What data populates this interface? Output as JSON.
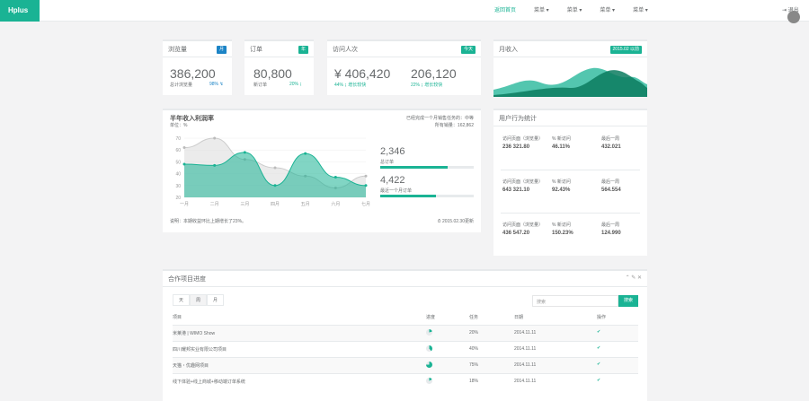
{
  "brand": "Hplus",
  "nav": {
    "home": "返回首页",
    "menus": [
      "菜单 ▾",
      "菜单 ▾",
      "菜单 ▾",
      "菜单 ▾"
    ],
    "logout": "⇥ 退出"
  },
  "stats": [
    {
      "title": "浏览量",
      "badge": "月",
      "badge_color": "#1c84c6",
      "value": "386,200",
      "sub": "总计浏览量",
      "pct": "98% ↯"
    },
    {
      "title": "订单",
      "badge": "年",
      "badge_color": "#1ab394",
      "value": "80,800",
      "sub": "新订单",
      "pct": "20% ↨"
    }
  ],
  "visits": {
    "title": "访问人次",
    "badge": "今天",
    "v1": "¥ 406,420",
    "v1sub": "44% ↨ 增长较快",
    "v2": "206,120",
    "v2sub": "22% ↨ 增长较快"
  },
  "monthly": {
    "title": "月收入",
    "badge": "2015.02 以前"
  },
  "half": {
    "title": "半年收入利润率",
    "subtitle": "单位：%",
    "right1": "已经完成一个月销售任务的：中等",
    "right2": "所有销量：162,862",
    "stat1": "2,346",
    "stat1_label": "总订单",
    "stat2": "4,422",
    "stat2_label": "最近一个月订单",
    "note": "说明：本期收益环比上期增长了23%。",
    "time": "⏱ 2015.02.30更新"
  },
  "chart_data": {
    "type": "area",
    "categories": [
      "一月",
      "二月",
      "三月",
      "四月",
      "五月",
      "六月",
      "七月"
    ],
    "yticks": [
      "20",
      "30",
      "40",
      "50",
      "60",
      "70"
    ],
    "ylim": [
      20,
      70
    ],
    "series": [
      {
        "name": "",
        "values": [
          48,
          47,
          58,
          30,
          57,
          37,
          30
        ],
        "color": "#1ab394"
      },
      {
        "name": "",
        "values": [
          62,
          70,
          52,
          45,
          38,
          28,
          38
        ],
        "color": "#dedede"
      }
    ]
  },
  "behavior": {
    "title": "用户行为统计",
    "rows": [
      [
        {
          "l": "访问页面（浏览量）",
          "v": "236 321.80"
        },
        {
          "l": "% 新访问",
          "v": "46.11%"
        },
        {
          "l": "最后一周",
          "v": "432.021"
        }
      ],
      [
        {
          "l": "访问页面（浏览量）",
          "v": "643 321.10"
        },
        {
          "l": "% 新访问",
          "v": "92.43%"
        },
        {
          "l": "最后一周",
          "v": "564.554"
        }
      ],
      [
        {
          "l": "访问页面（浏览量）",
          "v": "436 547.20"
        },
        {
          "l": "% 新访问",
          "v": "150.23%"
        },
        {
          "l": "最后一周",
          "v": "124.990"
        }
      ]
    ]
  },
  "projects": {
    "title": "合作项目进度",
    "tabs": [
      "天",
      "周",
      "月"
    ],
    "search_placeholder": "搜索",
    "search_btn": "搜索",
    "head": [
      "项目",
      "进度",
      "任务",
      "日期",
      "操作"
    ],
    "rows": [
      {
        "name": "米莱港 | WIMO Show",
        "pct": "20%",
        "date": "2014.11.11",
        "fill": 0.2
      },
      {
        "name": "四川耀邦实业有限公司项目",
        "pct": "40%",
        "date": "2014.11.11",
        "fill": 0.4
      },
      {
        "name": "天猫・优趣网项目",
        "pct": "75%",
        "date": "2014.11.11",
        "fill": 0.75
      },
      {
        "name": "线下体验+线上商城+移动端订单系统",
        "pct": "18%",
        "date": "2014.11.11",
        "fill": 0.18
      }
    ],
    "check": "✔"
  }
}
